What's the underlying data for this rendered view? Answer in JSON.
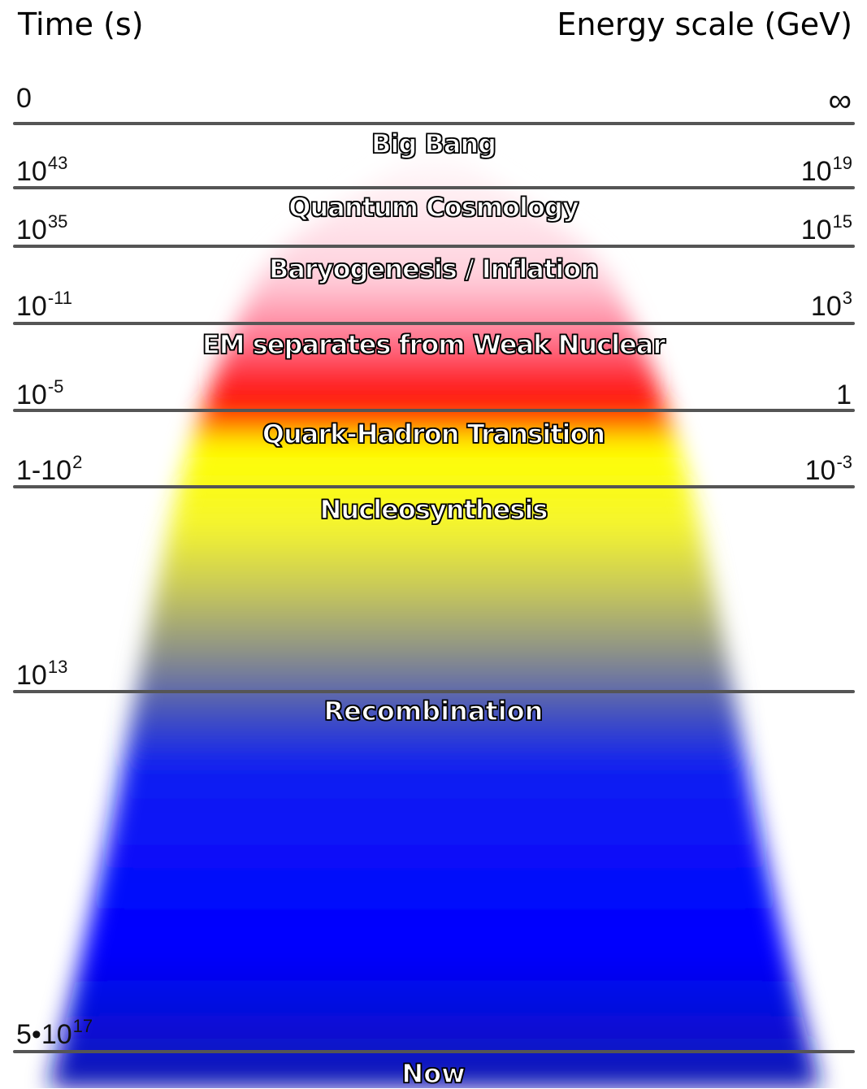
{
  "headers": {
    "time": "Time (s)",
    "energy": "Energy scale (GeV)"
  },
  "time_ticks": [
    {
      "base": "0",
      "exp": ""
    },
    {
      "base": "10",
      "exp": "43"
    },
    {
      "base": "10",
      "exp": "35"
    },
    {
      "base": "10",
      "exp": "-11"
    },
    {
      "base": "10",
      "exp": "-5"
    },
    {
      "base": "1-10",
      "exp": "2"
    },
    {
      "base": "10",
      "exp": "13"
    },
    {
      "base": "5•10",
      "exp": "17"
    }
  ],
  "energy_ticks": [
    {
      "base": "∞",
      "exp": ""
    },
    {
      "base": "10",
      "exp": "19"
    },
    {
      "base": "10",
      "exp": "15"
    },
    {
      "base": "10",
      "exp": "3"
    },
    {
      "base": "1",
      "exp": ""
    },
    {
      "base": "10",
      "exp": "-3"
    }
  ],
  "eras": [
    "Big Bang",
    "Quantum Cosmology",
    "Baryogenesis / Inflation",
    "EM separates from Weak Nuclear",
    "Quark-Hadron Transition",
    "Nucleosynthesis",
    "Recombination",
    "Now"
  ],
  "colors": {
    "background": "#ffffff",
    "pink": "#f7b6c4",
    "red": "#ff0000",
    "yellow": "#ffff00",
    "olive": "#c9c94a",
    "blue": "#0000ff",
    "deep_blue": "#0a1ab8",
    "divider": "#555555"
  }
}
